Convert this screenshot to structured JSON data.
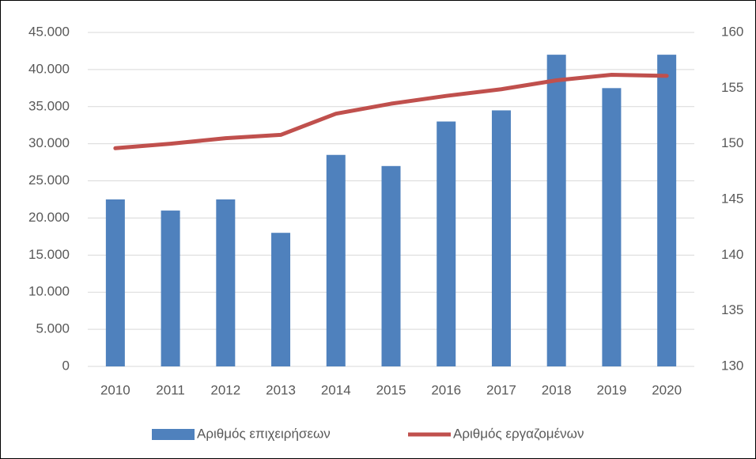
{
  "chart_data": {
    "type": "bar",
    "categories": [
      "2010",
      "2011",
      "2012",
      "2013",
      "2014",
      "2015",
      "2016",
      "2017",
      "2018",
      "2019",
      "2020"
    ],
    "series": [
      {
        "name": "Αριθμός επιχειρήσεων",
        "type": "bar",
        "color": "#4f81bd",
        "axis": "y",
        "values": [
          22500,
          21000,
          22500,
          18000,
          28500,
          27000,
          33000,
          34500,
          42000,
          37500,
          42000
        ]
      },
      {
        "name": "Αριθμός εργαζομένων",
        "type": "line",
        "color": "#c0504d",
        "axis": "y2",
        "values": [
          149.6,
          150.0,
          150.5,
          150.8,
          152.7,
          153.6,
          154.3,
          154.9,
          155.7,
          156.2,
          156.1
        ]
      }
    ],
    "ylim": [
      0,
      45000
    ],
    "yticks": [
      0,
      {
        "value": 5000,
        "label": "5.000"
      },
      {
        "value": 10000,
        "label": "10.000"
      },
      {
        "value": 15000,
        "label": "15.000"
      },
      {
        "value": 20000,
        "label": "20.000"
      },
      {
        "value": 25000,
        "label": "25.000"
      },
      {
        "value": 30000,
        "label": "30.000"
      },
      {
        "value": 35000,
        "label": "35.000"
      },
      {
        "value": 40000,
        "label": "40.000"
      },
      {
        "value": 45000,
        "label": "45.000"
      }
    ],
    "y2lim": [
      130,
      160
    ],
    "y2ticks": [
      130,
      135,
      140,
      145,
      150,
      155,
      160
    ],
    "grid": true,
    "legend": "bottom"
  }
}
